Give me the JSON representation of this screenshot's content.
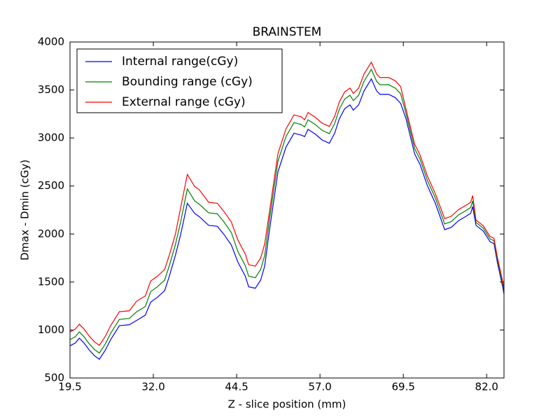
{
  "chart_data": {
    "type": "line",
    "title": "BRAINSTEM",
    "xlabel": "Z - slice position (mm)",
    "ylabel": "Dmax - Dmin (cGy)",
    "xlim": [
      19.5,
      84.6
    ],
    "ylim": [
      500,
      4000
    ],
    "xticks": [
      19.5,
      {
        "value": 32.0,
        "label": "32.0"
      },
      44.5,
      {
        "value": 57.0,
        "label": "57.0"
      },
      69.5,
      {
        "value": 82.0,
        "label": "82.0"
      }
    ],
    "yticks": [
      500,
      1000,
      1500,
      2000,
      2500,
      3000,
      3500,
      4000
    ],
    "legend": "upper left",
    "x": [
      19.5,
      20.3,
      20.9,
      21.6,
      22.4,
      23.2,
      23.9,
      24.8,
      25.6,
      26.9,
      28.4,
      29.5,
      30.8,
      31.6,
      32.6,
      33.7,
      34.4,
      35.3,
      36.1,
      37.1,
      38.2,
      38.9,
      40.3,
      41.6,
      42.6,
      43.7,
      44.7,
      45.8,
      46.3,
      47.3,
      48.1,
      48.7,
      49.4,
      50.0,
      50.7,
      51.9,
      53.1,
      54.2,
      54.7,
      55.2,
      56.3,
      57.3,
      58.4,
      59.2,
      59.9,
      60.7,
      61.5,
      62.0,
      62.8,
      63.6,
      64.7,
      65.5,
      66.0,
      67.3,
      68.3,
      69.1,
      69.9,
      71.2,
      72.0,
      73.1,
      74.3,
      75.7,
      76.7,
      77.8,
      78.8,
      79.6,
      79.9,
      80.4,
      81.5,
      82.5,
      83.1,
      83.6,
      84.4,
      84.6
    ],
    "series": [
      {
        "name": "Internal range(cGy)",
        "color": "#0000ff",
        "values": [
          835,
          865,
          915,
          865,
          790,
          730,
          695,
          790,
          900,
          1045,
          1055,
          1100,
          1155,
          1290,
          1340,
          1410,
          1560,
          1775,
          1995,
          2320,
          2215,
          2180,
          2090,
          2080,
          1995,
          1885,
          1705,
          1560,
          1450,
          1435,
          1520,
          1665,
          2030,
          2320,
          2650,
          2905,
          3050,
          3030,
          3015,
          3090,
          3040,
          2980,
          2945,
          3050,
          3200,
          3305,
          3345,
          3290,
          3345,
          3490,
          3615,
          3490,
          3455,
          3455,
          3420,
          3360,
          3200,
          2835,
          2725,
          2505,
          2320,
          2045,
          2070,
          2140,
          2180,
          2215,
          2285,
          2090,
          2030,
          1920,
          1900,
          1705,
          1450,
          1375
        ]
      },
      {
        "name": "Bounding range (cGy)",
        "color": "#008000",
        "values": [
          900,
          930,
          980,
          930,
          855,
          795,
          760,
          855,
          965,
          1110,
          1120,
          1190,
          1245,
          1400,
          1450,
          1520,
          1670,
          1885,
          2125,
          2470,
          2345,
          2310,
          2220,
          2210,
          2125,
          2015,
          1815,
          1670,
          1560,
          1545,
          1630,
          1775,
          2140,
          2430,
          2760,
          3015,
          3160,
          3140,
          3115,
          3190,
          3140,
          3080,
          3045,
          3150,
          3300,
          3405,
          3445,
          3390,
          3445,
          3590,
          3715,
          3590,
          3555,
          3555,
          3520,
          3460,
          3255,
          2890,
          2780,
          2560,
          2375,
          2105,
          2130,
          2200,
          2240,
          2275,
          2345,
          2120,
          2060,
          1950,
          1930,
          1735,
          1480,
          1405
        ]
      },
      {
        "name": "External range (cGy)",
        "color": "#ff0000",
        "values": [
          980,
          1010,
          1060,
          1010,
          935,
          875,
          840,
          935,
          1045,
          1190,
          1200,
          1300,
          1355,
          1510,
          1560,
          1630,
          1780,
          1995,
          2275,
          2620,
          2495,
          2460,
          2330,
          2320,
          2235,
          2125,
          1935,
          1790,
          1680,
          1665,
          1750,
          1895,
          2220,
          2510,
          2840,
          3095,
          3240,
          3220,
          3190,
          3265,
          3215,
          3155,
          3120,
          3225,
          3375,
          3480,
          3520,
          3465,
          3520,
          3665,
          3790,
          3665,
          3630,
          3630,
          3595,
          3535,
          3300,
          2935,
          2825,
          2605,
          2420,
          2160,
          2185,
          2255,
          2295,
          2330,
          2400,
          2145,
          2085,
          1975,
          1955,
          1760,
          1505,
          1430
        ]
      }
    ]
  }
}
